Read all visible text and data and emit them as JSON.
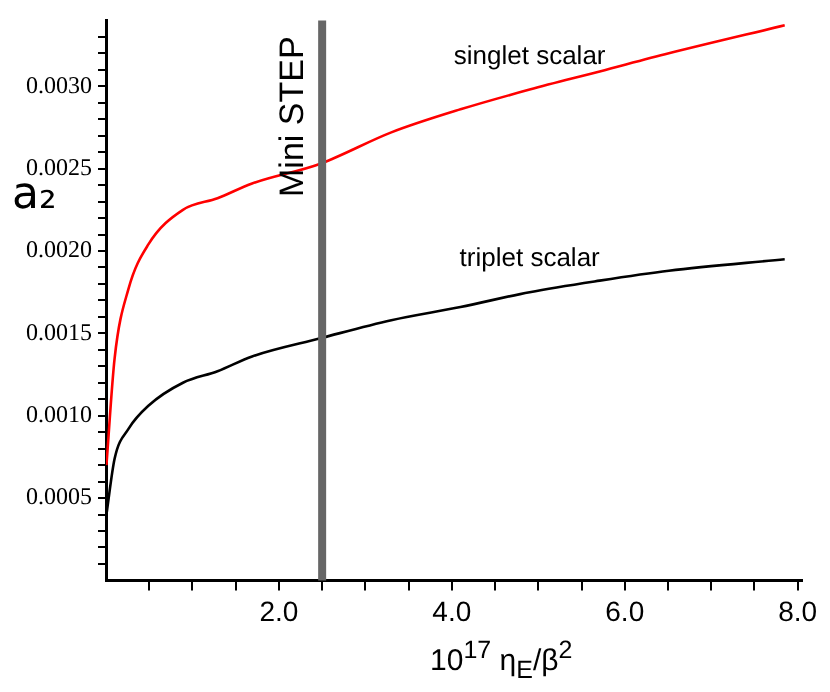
{
  "chart_data": {
    "type": "line",
    "xlabel": "10$^{17}$ η$_{E}$/β$^{2}$",
    "ylabel": "a₂",
    "x": [
      0.005,
      0.1,
      0.26,
      0.49,
      0.89,
      1.29,
      1.69,
      2.48,
      3.3,
      4.1,
      4.9,
      5.71,
      6.51,
      7.85
    ],
    "series": [
      {
        "name": "singlet scalar",
        "color": "#ff0000",
        "values": [
          0.0007,
          0.00135,
          0.00177,
          0.00204,
          0.00225,
          0.00232,
          0.00241,
          0.00253,
          0.00272,
          0.00286,
          0.00298,
          0.00309,
          0.0032,
          0.00337
        ]
      },
      {
        "name": "triplet scalar",
        "color": "#000000",
        "values": [
          0.0004,
          0.00074,
          0.00092,
          0.00106,
          0.0012,
          0.00127,
          0.00136,
          0.00147,
          0.00158,
          0.00166,
          0.00175,
          0.00182,
          0.00188,
          0.00195
        ]
      }
    ],
    "xlim": [
      0,
      8.05
    ],
    "ylim": [
      0,
      0.0034
    ],
    "xticks": [
      {
        "value": 0.5,
        "label": null
      },
      {
        "value": 1,
        "label": null
      },
      {
        "value": 1.5,
        "label": null
      },
      {
        "value": 2,
        "label": "2.0"
      },
      {
        "value": 2.5,
        "label": null
      },
      {
        "value": 3,
        "label": null
      },
      {
        "value": 3.5,
        "label": null
      },
      {
        "value": 4,
        "label": "4.0"
      },
      {
        "value": 4.5,
        "label": null
      },
      {
        "value": 5,
        "label": null
      },
      {
        "value": 5.5,
        "label": null
      },
      {
        "value": 6,
        "label": "6.0"
      },
      {
        "value": 6.5,
        "label": null
      },
      {
        "value": 7,
        "label": null
      },
      {
        "value": 7.5,
        "label": null
      },
      {
        "value": 8,
        "label": "8.0"
      }
    ],
    "yticks": [
      {
        "value": 0.0001,
        "label": null
      },
      {
        "value": 0.0002,
        "label": null
      },
      {
        "value": 0.0003,
        "label": null
      },
      {
        "value": 0.0004,
        "label": null
      },
      {
        "value": 0.0005,
        "label": "0.0005"
      },
      {
        "value": 0.0006,
        "label": null
      },
      {
        "value": 0.0007,
        "label": null
      },
      {
        "value": 0.0008,
        "label": null
      },
      {
        "value": 0.0009,
        "label": null
      },
      {
        "value": 0.001,
        "label": "0.0010"
      },
      {
        "value": 0.0011,
        "label": null
      },
      {
        "value": 0.0012,
        "label": null
      },
      {
        "value": 0.0013,
        "label": null
      },
      {
        "value": 0.0014,
        "label": null
      },
      {
        "value": 0.0015,
        "label": "0.0015"
      },
      {
        "value": 0.0016,
        "label": null
      },
      {
        "value": 0.0017,
        "label": null
      },
      {
        "value": 0.0018,
        "label": null
      },
      {
        "value": 0.0019,
        "label": null
      },
      {
        "value": 0.002,
        "label": "0.0020"
      },
      {
        "value": 0.0021,
        "label": null
      },
      {
        "value": 0.0022,
        "label": null
      },
      {
        "value": 0.0023,
        "label": null
      },
      {
        "value": 0.0024,
        "label": null
      },
      {
        "value": 0.0025,
        "label": "0.0025"
      },
      {
        "value": 0.0026,
        "label": null
      },
      {
        "value": 0.0027,
        "label": null
      },
      {
        "value": 0.0028,
        "label": null
      },
      {
        "value": 0.0029,
        "label": null
      },
      {
        "value": 0.003,
        "label": "0.0030"
      },
      {
        "value": 0.0031,
        "label": null
      },
      {
        "value": 0.0032,
        "label": null
      },
      {
        "value": 0.0033,
        "label": null
      }
    ],
    "ref_lines": [
      {
        "axis": "x",
        "value": 2.5,
        "label": "Mini STEP",
        "color": "#666666",
        "line_style": "solid"
      }
    ],
    "grid": false,
    "legend": false,
    "marker": "none",
    "line_style": "solid"
  }
}
